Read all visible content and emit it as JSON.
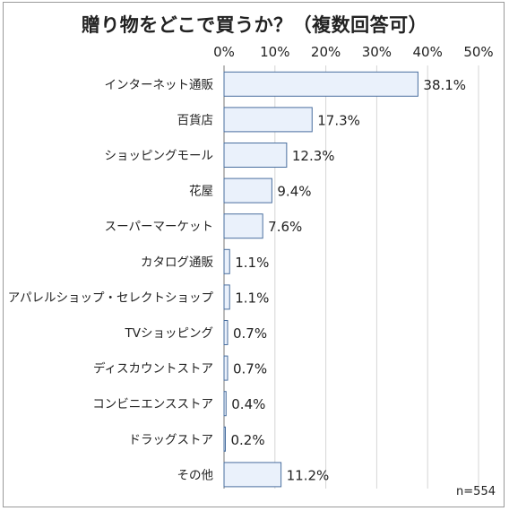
{
  "title": "贈り物をどこで買うか？（複数回答可）",
  "note": "n=554",
  "chart_data": {
    "type": "bar",
    "orientation": "horizontal",
    "title": "贈り物をどこで買うか？（複数回答可）",
    "xlabel": "",
    "ylabel": "",
    "xlim": [
      0,
      50
    ],
    "ticks": [
      0,
      10,
      20,
      30,
      40,
      50
    ],
    "tick_labels": [
      "0%",
      "10%",
      "20%",
      "30%",
      "40%",
      "50%"
    ],
    "categories": [
      "インターネット通販",
      "百貨店",
      "ショッピングモール",
      "花屋",
      "スーパーマーケット",
      "カタログ通販",
      "アパレルショップ・セレクトショップ",
      "TVショッピング",
      "ディスカウントストア",
      "コンビニエンスストア",
      "ドラッグストア",
      "その他"
    ],
    "values": [
      38.1,
      17.3,
      12.3,
      9.4,
      7.6,
      1.1,
      1.1,
      0.7,
      0.7,
      0.4,
      0.2,
      11.2
    ],
    "value_labels": [
      "38.1%",
      "17.3%",
      "12.3%",
      "9.4%",
      "7.6%",
      "1.1%",
      "1.1%",
      "0.7%",
      "0.7%",
      "0.4%",
      "0.2%",
      "11.2%"
    ],
    "grid": true,
    "colors": {
      "bar_fill": "#eaf1fb",
      "bar_stroke": "#4a6f9f",
      "grid": "#d6d6d6",
      "axis": "#777777"
    }
  }
}
